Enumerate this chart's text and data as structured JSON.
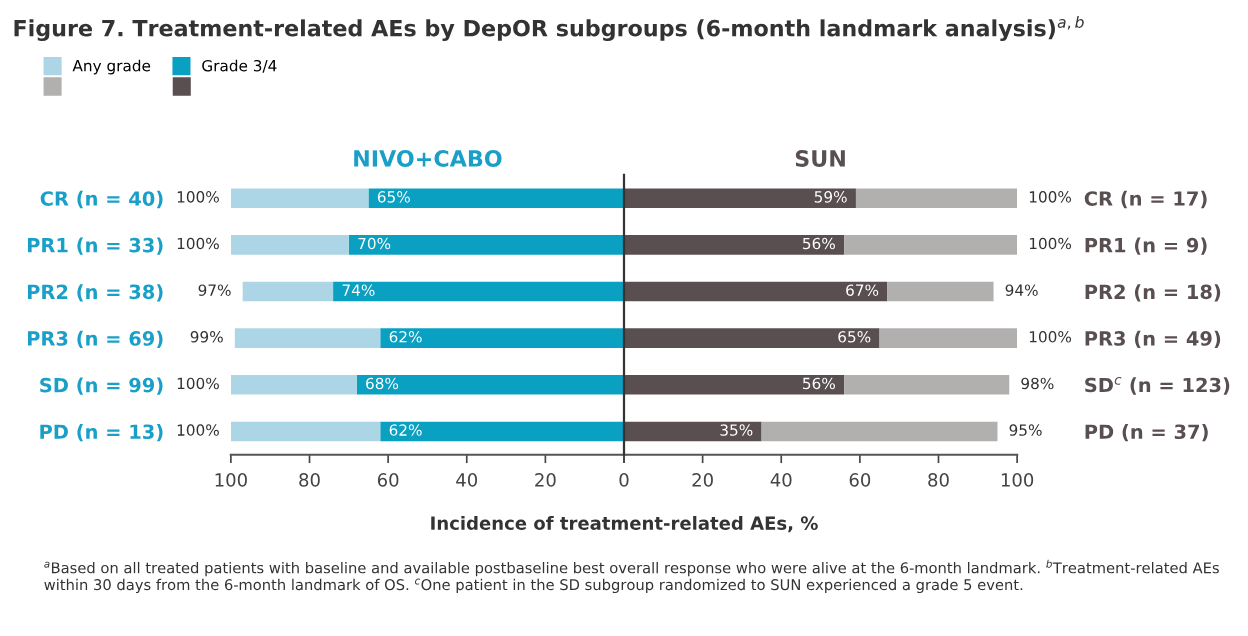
{
  "chart_data": [
    {
      "type": "bar",
      "orientation": "horizontal",
      "stacked": true,
      "title": "Figure 7. Treatment-related AEs by DepOR subgroups (6-month landmark analysis)$^{a,b}$",
      "subtitle": "NIVO+CABO",
      "xlabel": "Incidence of treatment-related AEs, %",
      "categories": [
        "CR (n = 40)",
        "PR1 (n = 33)",
        "PR2 (n = 38)",
        "PR3 (n = 69)",
        "SD (n = 99)",
        "PD (n = 13)"
      ],
      "series": [
        {
          "name": "Grade 3/4",
          "color": "#0aa0c2",
          "values": [
            65,
            70,
            74,
            62,
            68,
            62
          ],
          "value_labels": [
            "65%",
            "70%",
            "74%",
            "62%",
            "68%",
            "62%"
          ]
        },
        {
          "name": "Any grade",
          "color": "#acd6e6",
          "values": [
            35,
            30,
            23,
            37,
            32,
            38
          ]
        }
      ],
      "totals": [
        "100%",
        "100%",
        "97%",
        "99%",
        "100%",
        "100%"
      ],
      "xlim": [
        100,
        0
      ],
      "xticks": [
        100,
        80,
        60,
        40,
        20,
        0
      ],
      "annotations": [
        "$^{a}$Based on all treated patients with baseline and available postbaseline best overall response who were alive at the 6-month landmark. $^{b}$Treatment-related AEs within 30 days from the 6-month landmark of OS. $^{c}$One patient in the SD subgroup randomized to SUN experienced a grade 5 event."
      ],
      "legend": "top left",
      "grid": false
    },
    {
      "type": "bar",
      "orientation": "horizontal",
      "stacked": true,
      "subtitle": "SUN",
      "categories": [
        "CR (n = 17)",
        "PR1 (n = 9)",
        "PR2 (n = 18)",
        "PR3 (n = 49)",
        "SD$^{c}$ (n = 123)",
        "PD (n = 37)"
      ],
      "series": [
        {
          "color": "#5a4f50",
          "values": [
            59,
            56,
            67,
            65,
            56,
            35
          ],
          "value_labels": [
            "59%",
            "56%",
            "67%",
            "65%",
            "56%",
            "35%"
          ]
        },
        {
          "color": "#b2afaf",
          "values": [
            41,
            44,
            27,
            35,
            42,
            60
          ]
        }
      ],
      "totals": [
        "100%",
        "100%",
        "94%",
        "100%",
        "98%",
        "95%"
      ],
      "xlim": [
        0,
        100
      ],
      "xticks": [
        {
          "value": 0,
          "label": null
        },
        20,
        40,
        60,
        80,
        100
      ],
      "ref_lines": [
        {
          "axis": "x",
          "value": 0,
          "color": "#333333"
        }
      ],
      "grid": false
    }
  ]
}
